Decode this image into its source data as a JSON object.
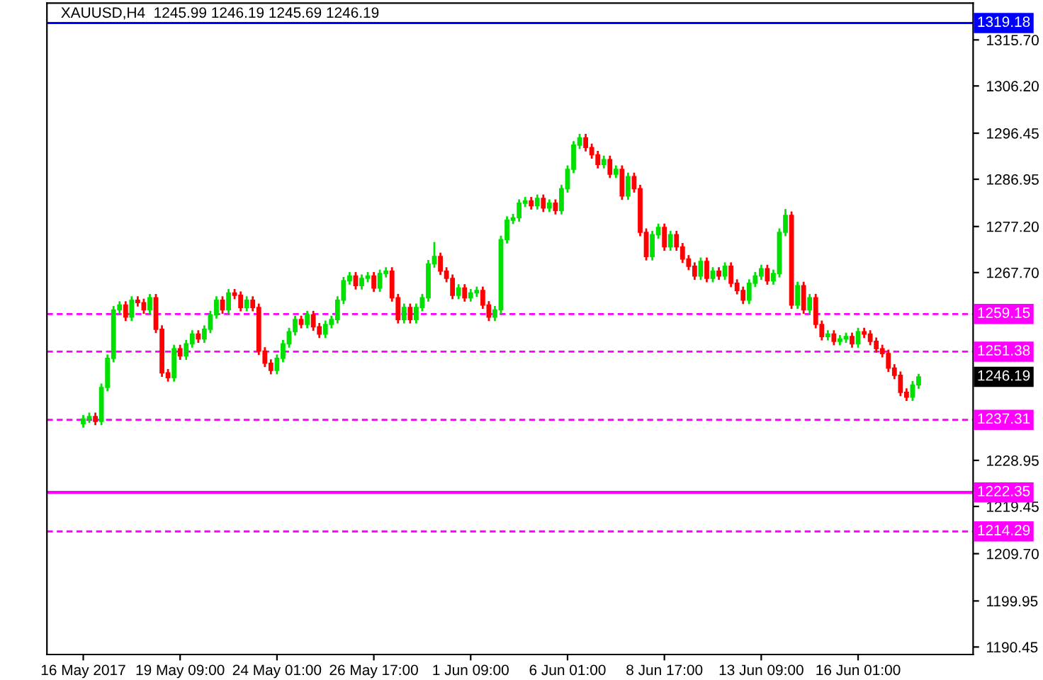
{
  "chart_data": {
    "type": "candlestick",
    "title": "XAUUSD,H4  1245.99 1246.19 1245.69 1246.19",
    "categories": [
      "16 May 2017",
      null,
      null,
      null,
      null,
      null,
      null,
      null,
      null,
      null,
      null,
      null,
      null,
      null,
      null,
      null,
      "19 May 09:00",
      null,
      null,
      null,
      null,
      null,
      null,
      null,
      null,
      null,
      null,
      null,
      null,
      null,
      null,
      null,
      "24 May 01:00",
      null,
      null,
      null,
      null,
      null,
      null,
      null,
      null,
      null,
      null,
      null,
      null,
      null,
      null,
      null,
      "26 May 17:00",
      null,
      null,
      null,
      null,
      null,
      null,
      null,
      null,
      null,
      null,
      null,
      null,
      null,
      null,
      null,
      "1 Jun 09:00",
      null,
      null,
      null,
      null,
      null,
      null,
      null,
      null,
      null,
      null,
      null,
      null,
      null,
      null,
      null,
      "6 Jun 01:00",
      null,
      null,
      null,
      null,
      null,
      null,
      null,
      null,
      null,
      null,
      null,
      null,
      null,
      null,
      null,
      "8 Jun 17:00",
      null,
      null,
      null,
      null,
      null,
      null,
      null,
      null,
      null,
      null,
      null,
      null,
      null,
      null,
      null,
      "13 Jun 09:00",
      null,
      null,
      null,
      null,
      null,
      null,
      null,
      null,
      null,
      null,
      null,
      null,
      null,
      null,
      null,
      "16 Jun 01:00",
      null,
      null,
      null,
      null,
      null,
      null,
      null,
      null,
      null,
      null
    ],
    "ohlc": [
      [
        1236.5,
        1238.3,
        1235.7,
        1237.5
      ],
      [
        1237.5,
        1238.8,
        1236.7,
        1238.0
      ],
      [
        1238.0,
        1238.8,
        1236.2,
        1237.0
      ],
      [
        1237.0,
        1244.8,
        1236.2,
        1244.0
      ],
      [
        1244.0,
        1250.8,
        1243.2,
        1250.0
      ],
      [
        1250.0,
        1260.8,
        1249.2,
        1260.0
      ],
      [
        1260.0,
        1261.8,
        1259.2,
        1261.0
      ],
      [
        1261.0,
        1261.8,
        1257.7,
        1258.5
      ],
      [
        1258.5,
        1262.8,
        1257.7,
        1262.0
      ],
      [
        1262.0,
        1262.8,
        1260.7,
        1261.5
      ],
      [
        1261.5,
        1262.3,
        1259.2,
        1260.0
      ],
      [
        1260.0,
        1263.3,
        1259.2,
        1262.5
      ],
      [
        1262.5,
        1263.3,
        1255.2,
        1256.0
      ],
      [
        1256.0,
        1256.8,
        1246.2,
        1247.0
      ],
      [
        1247.0,
        1247.8,
        1245.2,
        1246.0
      ],
      [
        1246.0,
        1252.8,
        1245.2,
        1252.0
      ],
      [
        1252.0,
        1252.8,
        1249.7,
        1250.5
      ],
      [
        1250.5,
        1253.8,
        1249.7,
        1253.0
      ],
      [
        1253.0,
        1255.8,
        1252.2,
        1255.0
      ],
      [
        1255.0,
        1255.8,
        1253.2,
        1254.0
      ],
      [
        1254.0,
        1256.8,
        1253.2,
        1256.0
      ],
      [
        1256.0,
        1259.8,
        1255.2,
        1259.0
      ],
      [
        1259.0,
        1262.8,
        1258.2,
        1262.0
      ],
      [
        1262.0,
        1262.8,
        1259.2,
        1260.0
      ],
      [
        1260.0,
        1264.3,
        1259.2,
        1263.5
      ],
      [
        1263.5,
        1264.3,
        1262.2,
        1263.0
      ],
      [
        1263.0,
        1263.8,
        1259.7,
        1260.5
      ],
      [
        1260.5,
        1262.8,
        1259.7,
        1262.0
      ],
      [
        1262.0,
        1262.8,
        1259.7,
        1260.5
      ],
      [
        1260.5,
        1261.3,
        1250.7,
        1251.5
      ],
      [
        1251.5,
        1252.3,
        1248.2,
        1249.0
      ],
      [
        1249.0,
        1249.8,
        1246.7,
        1247.5
      ],
      [
        1247.5,
        1250.8,
        1246.7,
        1250.0
      ],
      [
        1250.0,
        1253.8,
        1249.2,
        1253.0
      ],
      [
        1253.0,
        1256.3,
        1252.2,
        1255.5
      ],
      [
        1255.5,
        1258.8,
        1254.7,
        1258.0
      ],
      [
        1258.0,
        1258.8,
        1256.2,
        1257.0
      ],
      [
        1257.0,
        1259.8,
        1256.2,
        1259.0
      ],
      [
        1259.0,
        1259.8,
        1255.7,
        1256.5
      ],
      [
        1256.5,
        1257.3,
        1254.2,
        1255.0
      ],
      [
        1255.0,
        1257.8,
        1254.2,
        1257.0
      ],
      [
        1257.0,
        1258.8,
        1256.2,
        1258.0
      ],
      [
        1258.0,
        1262.8,
        1257.2,
        1262.0
      ],
      [
        1262.0,
        1266.8,
        1261.2,
        1266.0
      ],
      [
        1266.0,
        1267.8,
        1265.2,
        1267.0
      ],
      [
        1267.0,
        1267.8,
        1264.2,
        1265.0
      ],
      [
        1265.0,
        1267.3,
        1264.2,
        1266.5
      ],
      [
        1266.5,
        1267.8,
        1265.7,
        1267.0
      ],
      [
        1267.0,
        1267.8,
        1263.7,
        1264.5
      ],
      [
        1264.5,
        1268.3,
        1263.7,
        1267.5
      ],
      [
        1267.5,
        1268.8,
        1266.7,
        1268.0
      ],
      [
        1268.0,
        1268.8,
        1261.7,
        1262.5
      ],
      [
        1262.5,
        1263.3,
        1257.2,
        1258.0
      ],
      [
        1258.0,
        1261.3,
        1257.2,
        1260.5
      ],
      [
        1260.5,
        1261.3,
        1257.2,
        1258.0
      ],
      [
        1258.0,
        1261.3,
        1257.2,
        1260.5
      ],
      [
        1260.5,
        1263.3,
        1259.7,
        1262.5
      ],
      [
        1262.5,
        1270.3,
        1261.7,
        1269.5
      ],
      [
        1269.5,
        1274.0,
        1268.7,
        1271.0
      ],
      [
        1271.0,
        1271.8,
        1267.2,
        1268.0
      ],
      [
        1268.0,
        1268.8,
        1265.7,
        1266.5
      ],
      [
        1266.5,
        1267.3,
        1262.2,
        1263.0
      ],
      [
        1263.0,
        1265.3,
        1262.2,
        1264.5
      ],
      [
        1264.5,
        1265.3,
        1261.7,
        1262.5
      ],
      [
        1262.5,
        1264.3,
        1261.7,
        1263.5
      ],
      [
        1263.5,
        1264.8,
        1262.7,
        1264.0
      ],
      [
        1264.0,
        1264.8,
        1260.2,
        1261.0
      ],
      [
        1261.0,
        1261.8,
        1257.7,
        1258.5
      ],
      [
        1258.5,
        1260.8,
        1257.7,
        1260.0
      ],
      [
        1260.0,
        1275.3,
        1259.2,
        1274.5
      ],
      [
        1274.5,
        1279.3,
        1273.7,
        1278.5
      ],
      [
        1278.5,
        1279.8,
        1277.7,
        1279.0
      ],
      [
        1279.0,
        1282.8,
        1278.2,
        1282.0
      ],
      [
        1282.0,
        1283.3,
        1281.2,
        1282.5
      ],
      [
        1282.5,
        1283.3,
        1280.7,
        1281.5
      ],
      [
        1281.5,
        1283.8,
        1280.7,
        1283.0
      ],
      [
        1283.0,
        1283.8,
        1280.2,
        1281.0
      ],
      [
        1281.0,
        1282.8,
        1280.2,
        1282.0
      ],
      [
        1282.0,
        1282.8,
        1279.7,
        1280.5
      ],
      [
        1280.5,
        1285.8,
        1279.7,
        1285.0
      ],
      [
        1285.0,
        1289.8,
        1284.2,
        1289.0
      ],
      [
        1289.0,
        1294.8,
        1288.2,
        1294.0
      ],
      [
        1294.0,
        1296.3,
        1293.2,
        1295.5
      ],
      [
        1295.5,
        1296.3,
        1292.7,
        1293.5
      ],
      [
        1293.5,
        1294.3,
        1291.2,
        1292.0
      ],
      [
        1292.0,
        1292.8,
        1289.2,
        1290.0
      ],
      [
        1290.0,
        1291.8,
        1289.2,
        1291.0
      ],
      [
        1291.0,
        1291.8,
        1287.2,
        1288.0
      ],
      [
        1288.0,
        1289.8,
        1287.2,
        1289.0
      ],
      [
        1289.0,
        1289.8,
        1282.7,
        1283.5
      ],
      [
        1283.5,
        1288.3,
        1282.7,
        1287.5
      ],
      [
        1287.5,
        1288.3,
        1284.2,
        1285.0
      ],
      [
        1285.0,
        1285.8,
        1275.2,
        1276.0
      ],
      [
        1276.0,
        1276.8,
        1270.2,
        1271.0
      ],
      [
        1271.0,
        1276.3,
        1270.2,
        1275.5
      ],
      [
        1275.5,
        1277.8,
        1274.7,
        1277.0
      ],
      [
        1277.0,
        1277.8,
        1272.2,
        1273.0
      ],
      [
        1273.0,
        1276.3,
        1272.2,
        1275.5
      ],
      [
        1275.5,
        1276.3,
        1272.2,
        1273.0
      ],
      [
        1273.0,
        1273.8,
        1269.7,
        1270.5
      ],
      [
        1270.5,
        1271.3,
        1268.2,
        1269.0
      ],
      [
        1269.0,
        1269.8,
        1266.2,
        1267.0
      ],
      [
        1267.0,
        1270.8,
        1266.2,
        1270.0
      ],
      [
        1270.0,
        1270.8,
        1265.7,
        1266.5
      ],
      [
        1266.5,
        1268.8,
        1265.7,
        1268.0
      ],
      [
        1268.0,
        1268.8,
        1266.2,
        1267.0
      ],
      [
        1267.0,
        1269.8,
        1266.2,
        1269.0
      ],
      [
        1269.0,
        1269.8,
        1264.7,
        1265.5
      ],
      [
        1265.5,
        1266.3,
        1263.2,
        1264.0
      ],
      [
        1264.0,
        1264.8,
        1261.2,
        1262.0
      ],
      [
        1262.0,
        1266.3,
        1261.2,
        1265.5
      ],
      [
        1265.5,
        1267.8,
        1264.7,
        1267.0
      ],
      [
        1267.0,
        1269.3,
        1266.2,
        1268.5
      ],
      [
        1268.5,
        1269.3,
        1265.2,
        1266.0
      ],
      [
        1266.0,
        1268.3,
        1265.2,
        1267.5
      ],
      [
        1267.5,
        1276.8,
        1266.7,
        1276.0
      ],
      [
        1276.0,
        1280.8,
        1275.2,
        1279.5
      ],
      [
        1279.5,
        1280.3,
        1260.2,
        1261.0
      ],
      [
        1261.0,
        1265.8,
        1260.2,
        1265.0
      ],
      [
        1265.0,
        1265.8,
        1259.2,
        1260.0
      ],
      [
        1260.0,
        1263.3,
        1259.2,
        1262.5
      ],
      [
        1262.5,
        1263.3,
        1256.2,
        1257.0
      ],
      [
        1257.0,
        1257.8,
        1253.7,
        1254.5
      ],
      [
        1254.5,
        1255.8,
        1253.7,
        1255.0
      ],
      [
        1255.0,
        1255.8,
        1252.7,
        1253.5
      ],
      [
        1253.5,
        1254.8,
        1252.7,
        1254.0
      ],
      [
        1254.0,
        1255.3,
        1253.2,
        1254.5
      ],
      [
        1254.5,
        1255.3,
        1252.2,
        1253.0
      ],
      [
        1253.0,
        1256.3,
        1252.2,
        1255.5
      ],
      [
        1255.5,
        1256.3,
        1254.2,
        1255.0
      ],
      [
        1255.0,
        1255.8,
        1252.7,
        1253.5
      ],
      [
        1253.5,
        1254.3,
        1251.2,
        1252.0
      ],
      [
        1252.0,
        1252.8,
        1250.2,
        1251.0
      ],
      [
        1251.0,
        1251.8,
        1247.2,
        1248.0
      ],
      [
        1248.0,
        1248.8,
        1245.7,
        1246.5
      ],
      [
        1246.5,
        1247.3,
        1242.2,
        1243.0
      ],
      [
        1243.0,
        1243.8,
        1241.2,
        1242.0
      ],
      [
        1242.0,
        1245.3,
        1241.2,
        1244.5
      ],
      [
        1244.5,
        1246.8,
        1243.7,
        1246.19
      ]
    ],
    "colors": [
      "#00e000",
      "#00e000",
      "#ff0000",
      "#00e000",
      "#00e000",
      "#00e000",
      "#00e000",
      "#ff0000",
      "#00e000",
      "#ff0000",
      "#ff0000",
      "#00e000",
      "#ff0000",
      "#ff0000",
      "#ff0000",
      "#00e000",
      "#ff0000",
      "#00e000",
      "#00e000",
      "#ff0000",
      "#00e000",
      "#00e000",
      "#00e000",
      "#ff0000",
      "#00e000",
      "#ff0000",
      "#ff0000",
      "#00e000",
      "#ff0000",
      "#ff0000",
      "#ff0000",
      "#ff0000",
      "#00e000",
      "#00e000",
      "#00e000",
      "#00e000",
      "#ff0000",
      "#00e000",
      "#ff0000",
      "#ff0000",
      "#00e000",
      "#00e000",
      "#00e000",
      "#00e000",
      "#00e000",
      "#ff0000",
      "#00e000",
      "#00e000",
      "#ff0000",
      "#00e000",
      "#00e000",
      "#ff0000",
      "#ff0000",
      "#00e000",
      "#ff0000",
      "#00e000",
      "#00e000",
      "#00e000",
      "#00e000",
      "#ff0000",
      "#ff0000",
      "#ff0000",
      "#00e000",
      "#ff0000",
      "#00e000",
      "#00e000",
      "#ff0000",
      "#ff0000",
      "#00e000",
      "#00e000",
      "#00e000",
      "#00e000",
      "#00e000",
      "#00e000",
      "#ff0000",
      "#00e000",
      "#ff0000",
      "#00e000",
      "#ff0000",
      "#00e000",
      "#00e000",
      "#00e000",
      "#00e000",
      "#ff0000",
      "#ff0000",
      "#ff0000",
      "#00e000",
      "#ff0000",
      "#00e000",
      "#ff0000",
      "#00e000",
      "#ff0000",
      "#ff0000",
      "#ff0000",
      "#00e000",
      "#00e000",
      "#ff0000",
      "#00e000",
      "#ff0000",
      "#ff0000",
      "#ff0000",
      "#ff0000",
      "#00e000",
      "#ff0000",
      "#00e000",
      "#ff0000",
      "#00e000",
      "#ff0000",
      "#ff0000",
      "#ff0000",
      "#00e000",
      "#00e000",
      "#00e000",
      "#ff0000",
      "#00e000",
      "#00e000",
      "#00e000",
      "#ff0000",
      "#00e000",
      "#ff0000",
      "#00e000",
      "#ff0000",
      "#ff0000",
      "#00e000",
      "#ff0000",
      "#00e000",
      "#00e000",
      "#ff0000",
      "#00e000",
      "#ff0000",
      "#ff0000",
      "#ff0000",
      "#ff0000",
      "#ff0000",
      "#ff0000",
      "#ff0000",
      "#ff0000",
      "#00e000",
      "#00e000"
    ],
    "ylim": [
      1188.9,
      1323.3
    ],
    "yticks": [
      {
        "value": 1315.7,
        "label": "1315.70"
      },
      {
        "value": 1306.2,
        "label": "1306.20"
      },
      {
        "value": 1296.45,
        "label": "1296.45"
      },
      {
        "value": 1286.95,
        "label": "1286.95"
      },
      {
        "value": 1277.2,
        "label": "1277.20"
      },
      {
        "value": 1267.7,
        "label": "1267.70"
      },
      {
        "value": 1228.95,
        "label": "1228.95"
      },
      {
        "value": 1219.45,
        "label": "1219.45"
      },
      {
        "value": 1209.7,
        "label": "1209.70"
      },
      {
        "value": 1199.95,
        "label": "1199.95"
      },
      {
        "value": 1190.45,
        "label": "1190.45"
      }
    ],
    "annotations": [
      "1246.19"
    ],
    "ref_lines": [
      {
        "axis": "y",
        "value": 1319.18,
        "label": "1319.18",
        "color": "#0000ff",
        "line_style": "solid"
      },
      {
        "axis": "y",
        "value": 1259.15,
        "label": "1259.15",
        "color": "#ff00ff",
        "line_style": "dashed"
      },
      {
        "axis": "y",
        "value": 1251.38,
        "label": "1251.38",
        "color": "#ff00ff",
        "line_style": "dashed"
      },
      {
        "axis": "y",
        "value": 1237.31,
        "label": "1237.31",
        "color": "#ff00ff",
        "line_style": "dashed"
      },
      {
        "axis": "y",
        "value": 1222.35,
        "label": "1222.35",
        "color": "#ff00ff",
        "line_style": "solid"
      },
      {
        "axis": "y",
        "value": 1214.29,
        "label": "1214.29",
        "color": "#ff00ff",
        "line_style": "dashed"
      }
    ],
    "grid": false,
    "legend": false
  }
}
